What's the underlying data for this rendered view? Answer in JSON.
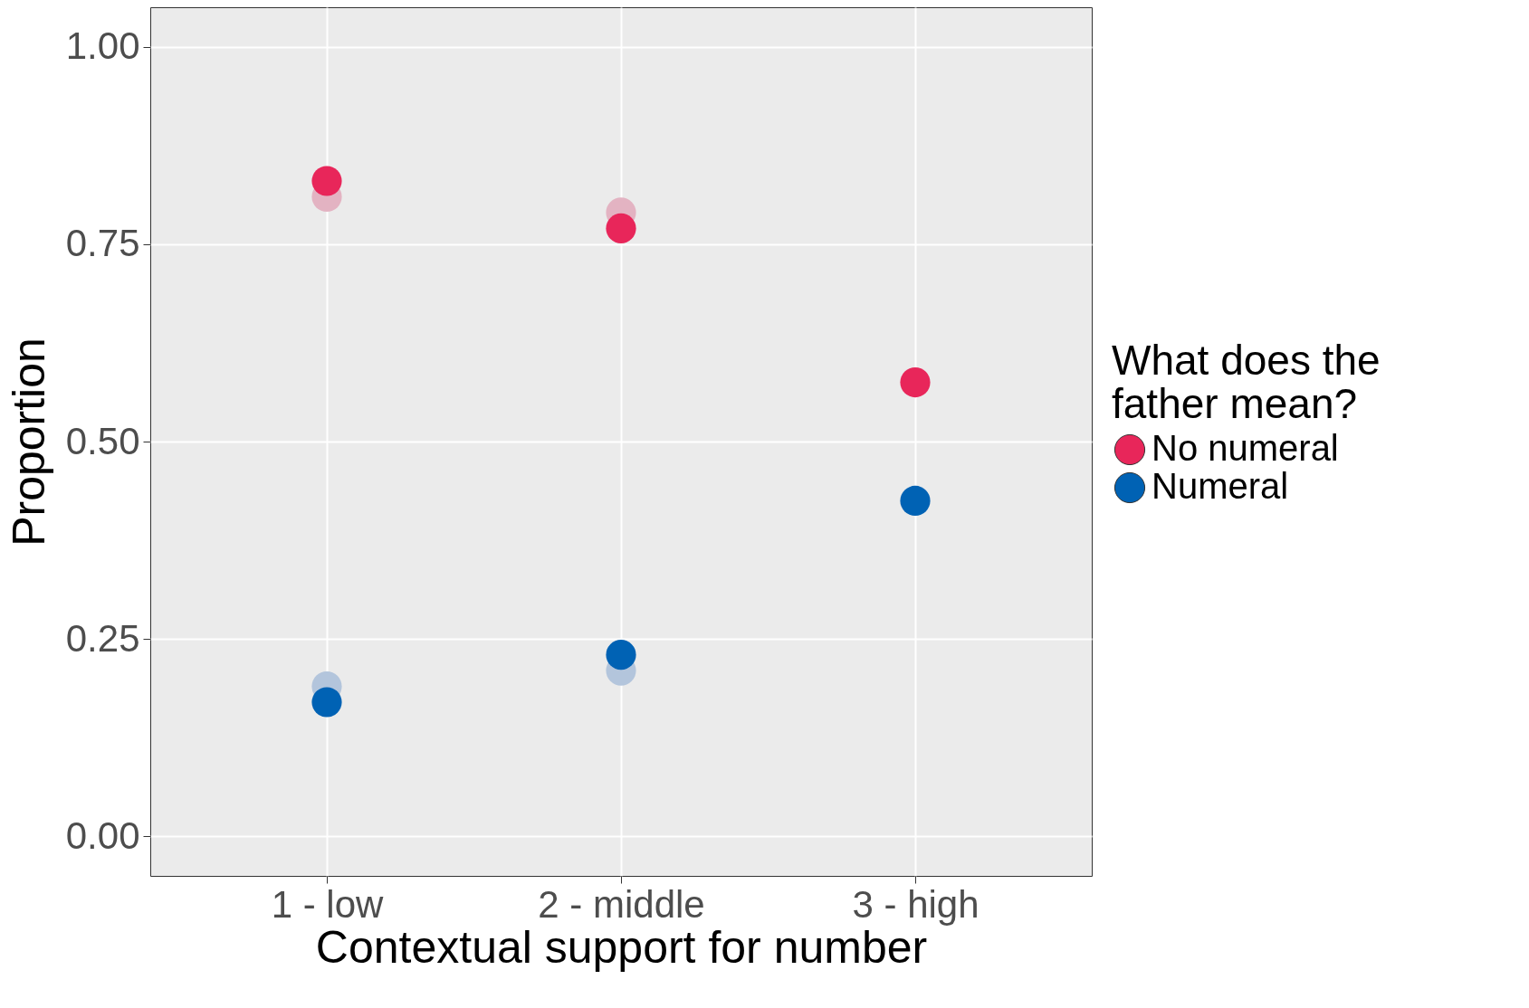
{
  "chart_data": {
    "type": "scatter",
    "xlabel": "Contextual support for number",
    "ylabel": "Proportion",
    "legend_title": "What does the father mean?",
    "categories": [
      "1 - low",
      "2 - middle",
      "3 - high"
    ],
    "series": [
      {
        "color": "#e3b3c2",
        "values": [
          0.81,
          0.79,
          null
        ]
      },
      {
        "color": "#b3c5dc",
        "values": [
          0.19,
          0.21,
          null
        ]
      },
      {
        "name": "No numeral",
        "color": "#e8265a",
        "values": [
          0.83,
          0.77,
          0.575
        ]
      },
      {
        "name": "Numeral",
        "color": "#0062b4",
        "values": [
          0.17,
          0.23,
          0.425
        ]
      }
    ],
    "ylim": [
      -0.05,
      1.05
    ],
    "yticks": [
      {
        "value": 0,
        "label": "0.00"
      },
      {
        "value": 0.25,
        "label": "0.25"
      },
      {
        "value": 0.5,
        "label": "0.50"
      },
      {
        "value": 0.75,
        "label": "0.75"
      },
      {
        "value": 1,
        "label": "1.00"
      }
    ],
    "grid": true,
    "legend": "right",
    "marker": "circle"
  }
}
